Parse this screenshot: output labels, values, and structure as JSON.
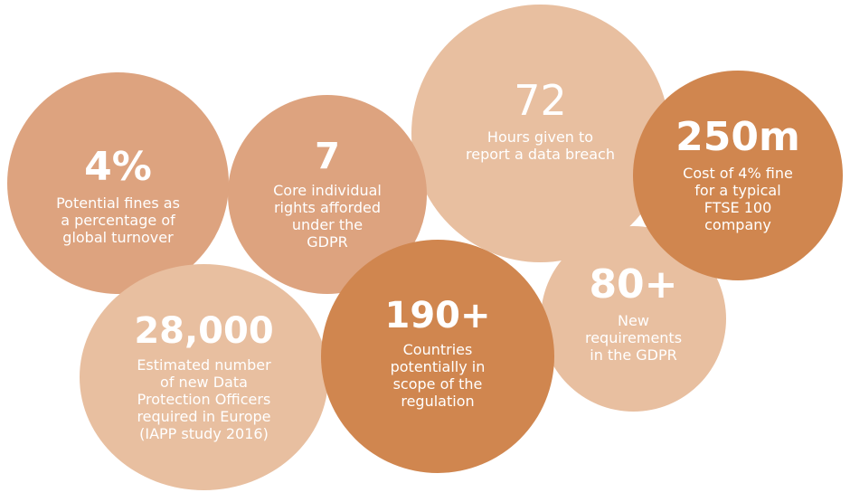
{
  "colors": {
    "light": "#E8BFA0",
    "medium": "#DDA37F",
    "dark": "#D0864F",
    "text": "#FFFFFF"
  },
  "stats": [
    {
      "id": "fines",
      "value": "4%",
      "description": "Potential fines as\na percentage of\nglobal turnover",
      "shade": "medium"
    },
    {
      "id": "rights",
      "value": "7",
      "description": "Core individual\nrights afforded\nunder the\nGDPR",
      "shade": "medium"
    },
    {
      "id": "hours",
      "value": "72",
      "description": "Hours given to\nreport a data breach",
      "shade": "light"
    },
    {
      "id": "cost",
      "value": "250m",
      "description": "Cost of 4% fine\nfor a typical\nFTSE 100\ncompany",
      "shade": "dark"
    },
    {
      "id": "dpo",
      "value": "28,000",
      "description": "Estimated number\nof new Data\nProtection Officers\nrequired in Europe\n(IAPP study 2016)",
      "shade": "light"
    },
    {
      "id": "countries",
      "value": "190+",
      "description": "Countries\npotentially in\nscope of the\nregulation",
      "shade": "dark"
    },
    {
      "id": "reqs",
      "value": "80+",
      "description": "New\nrequirements\nin the GDPR",
      "shade": "light"
    }
  ]
}
